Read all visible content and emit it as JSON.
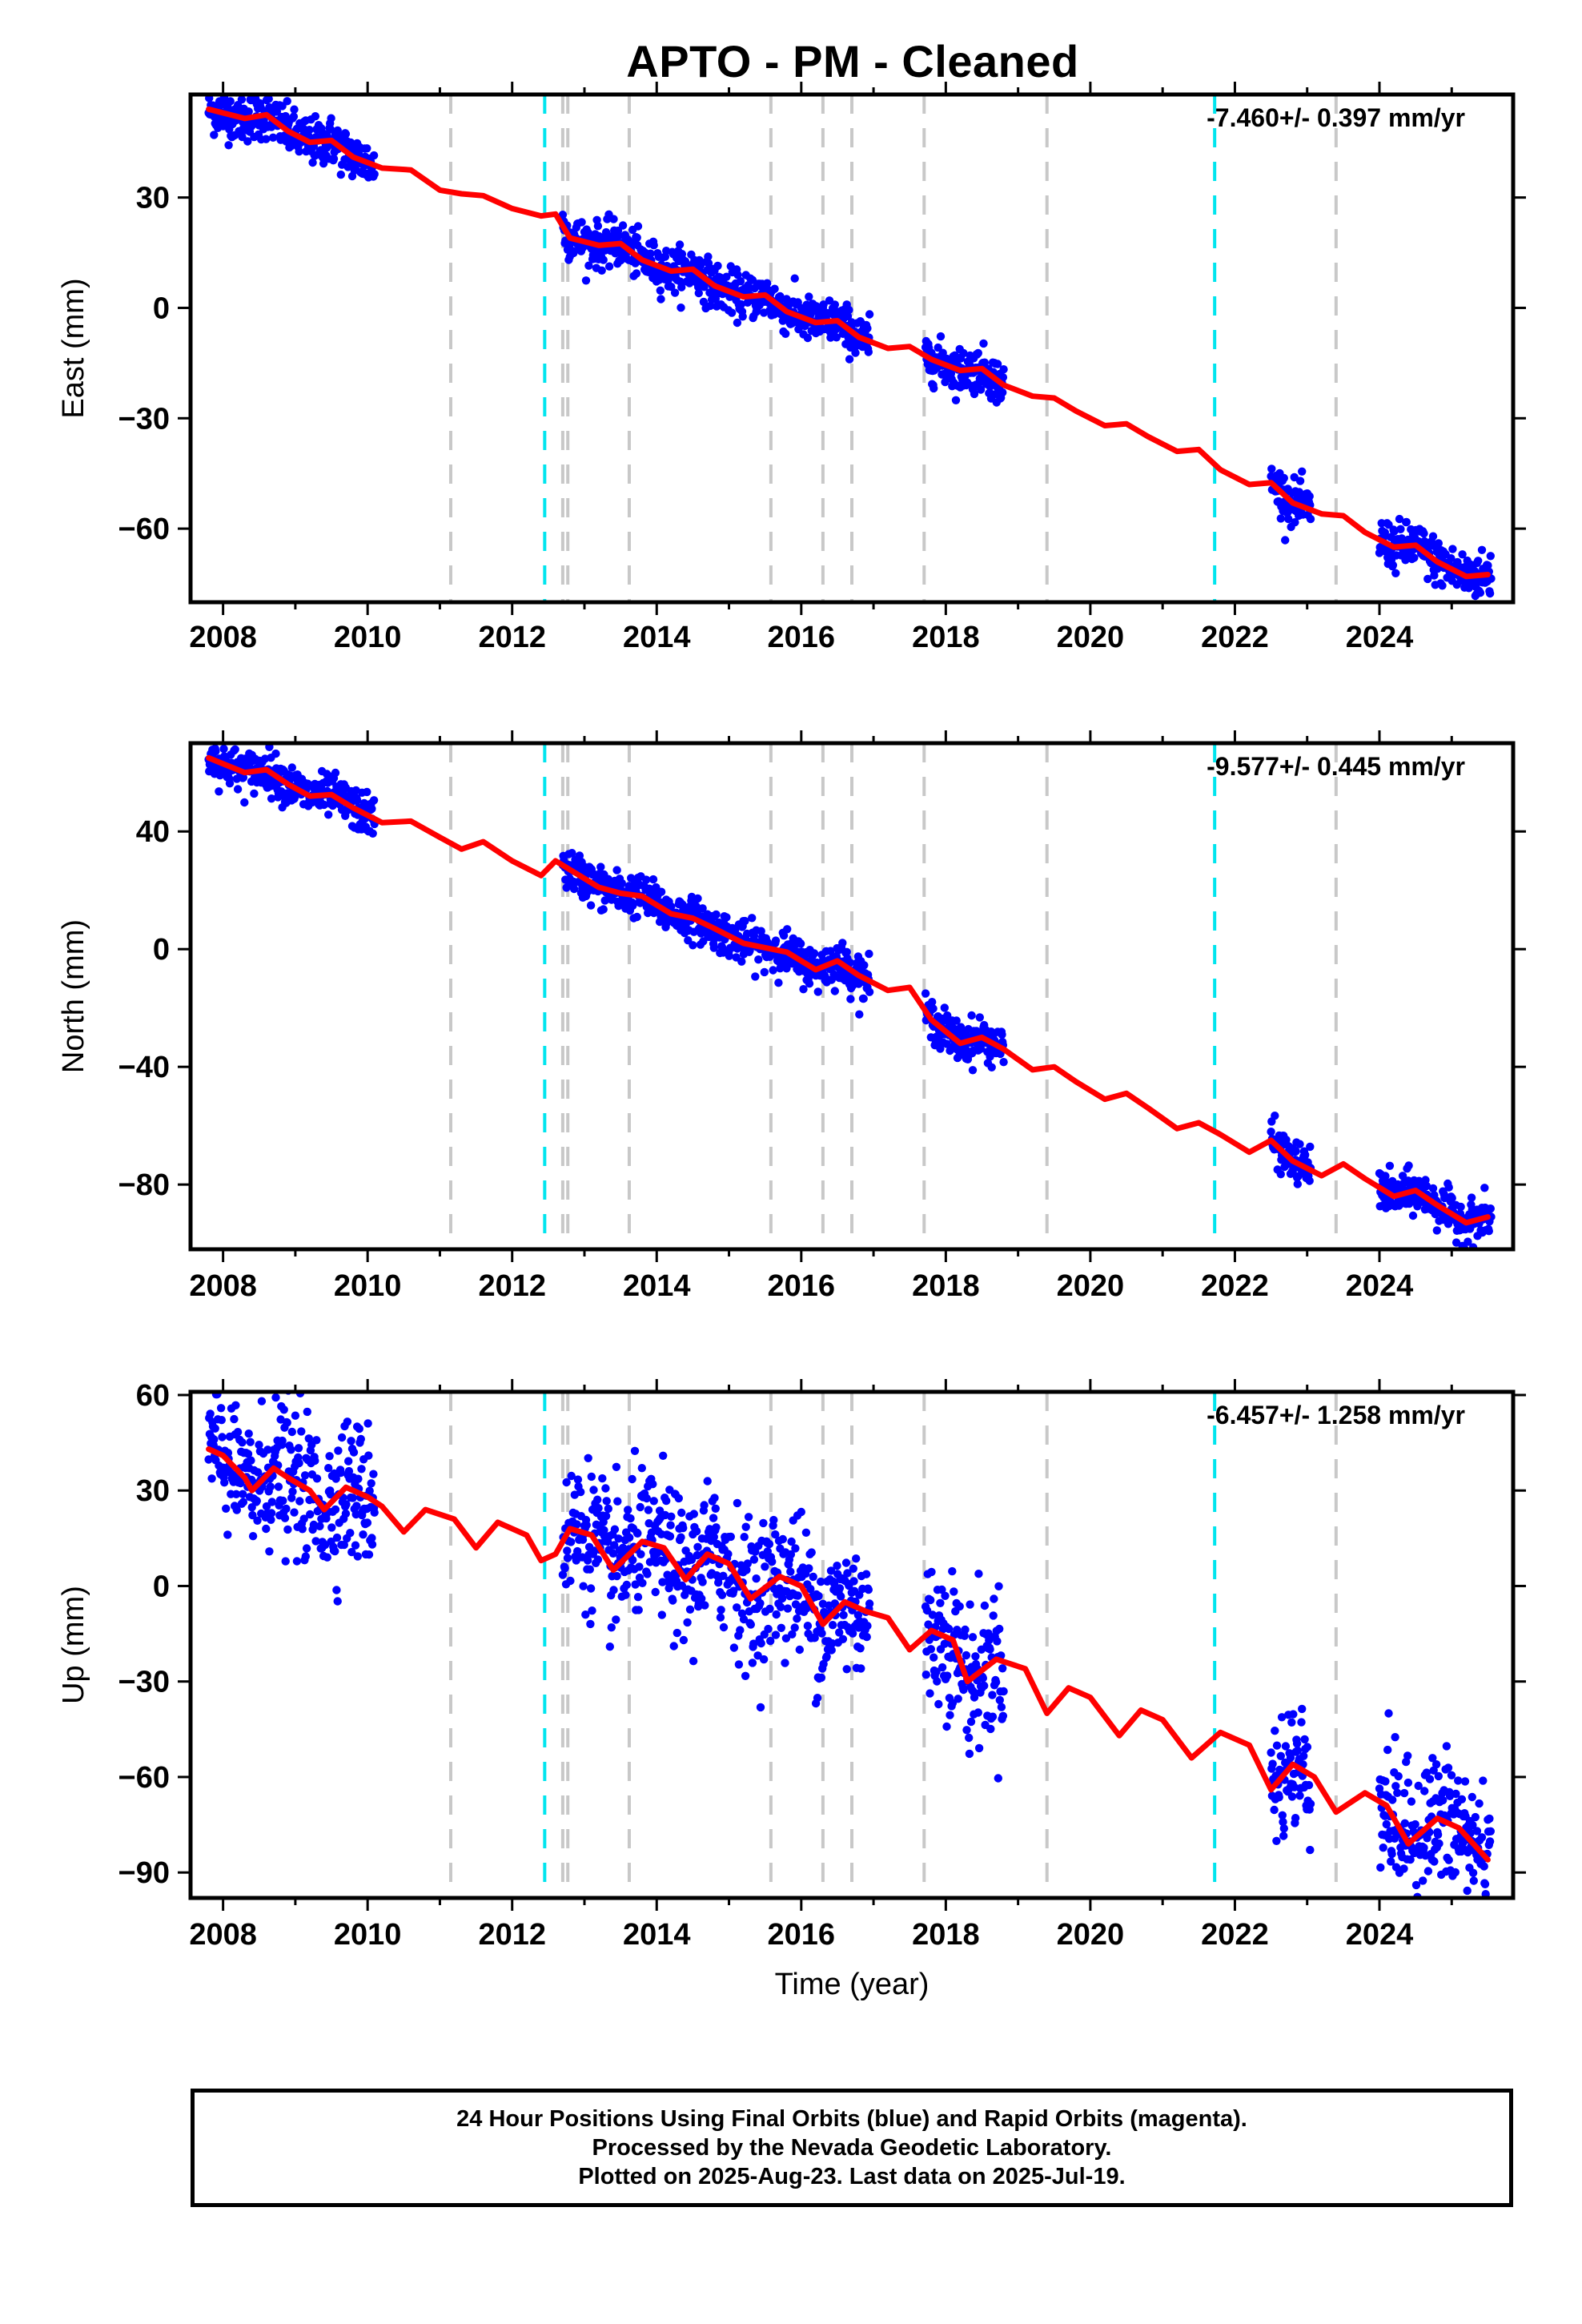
{
  "title": "APTO  - PM - Cleaned",
  "xlabel": "Time (year)",
  "colors": {
    "data": "#0000ff",
    "model": "#ff0000",
    "cyan_event": "#00e5ee",
    "gray_event": "#c8c8c8"
  },
  "footer": {
    "line1": "24 Hour Positions Using Final Orbits (blue) and Rapid Orbits (magenta).",
    "line2": "Processed by the Nevada Geodetic Laboratory.",
    "line3": "Plotted on 2025-Aug-23. Last data on 2025-Jul-19."
  },
  "chart_data": [
    {
      "type": "scatter",
      "id": "east",
      "ylabel": "East (mm)",
      "rate": "-7.460+/- 0.397 mm/yr",
      "xlim": [
        2007.55,
        2025.85
      ],
      "ylim": [
        -80,
        58
      ],
      "xticks": [
        2008,
        2010,
        2012,
        2014,
        2016,
        2018,
        2020,
        2022,
        2024
      ],
      "yticks": [
        30,
        0,
        -30,
        -60
      ],
      "ytick_labels": [
        "30",
        "0",
        "−30",
        "−60"
      ],
      "x_tick_labels": [
        "2008",
        "2010",
        "2012",
        "2014",
        "2016",
        "2018",
        "2020",
        "2022",
        "2024"
      ],
      "events_gray": [
        2011.15,
        2012.7,
        2012.77,
        2013.62,
        2015.58,
        2016.3,
        2016.7,
        2017.7,
        2019.4,
        2023.4
      ],
      "events_cyan": [
        2012.45,
        2021.72
      ],
      "model": [
        [
          2007.8,
          54
        ],
        [
          2008.0,
          53
        ],
        [
          2008.3,
          51.5
        ],
        [
          2008.6,
          52.5
        ],
        [
          2008.9,
          48
        ],
        [
          2009.2,
          45
        ],
        [
          2009.5,
          45.5
        ],
        [
          2009.8,
          41
        ],
        [
          2010.2,
          38
        ],
        [
          2010.6,
          37.5
        ],
        [
          2011.0,
          32
        ],
        [
          2011.3,
          31
        ],
        [
          2011.6,
          30.5
        ],
        [
          2012.0,
          27
        ],
        [
          2012.4,
          25
        ],
        [
          2012.6,
          25.5
        ],
        [
          2012.8,
          19
        ],
        [
          2013.2,
          17
        ],
        [
          2013.5,
          17.5
        ],
        [
          2013.8,
          13
        ],
        [
          2014.2,
          10
        ],
        [
          2014.5,
          10.5
        ],
        [
          2014.8,
          6
        ],
        [
          2015.2,
          3
        ],
        [
          2015.5,
          3.5
        ],
        [
          2015.8,
          -1
        ],
        [
          2016.2,
          -4
        ],
        [
          2016.5,
          -3.5
        ],
        [
          2016.8,
          -8
        ],
        [
          2017.2,
          -11
        ],
        [
          2017.5,
          -10.5
        ],
        [
          2017.8,
          -14
        ],
        [
          2018.2,
          -17
        ],
        [
          2018.5,
          -16.5
        ],
        [
          2018.8,
          -21
        ],
        [
          2019.2,
          -24
        ],
        [
          2019.5,
          -24.5
        ],
        [
          2019.8,
          -28
        ],
        [
          2020.2,
          -32
        ],
        [
          2020.5,
          -31.5
        ],
        [
          2020.8,
          -35
        ],
        [
          2021.2,
          -39
        ],
        [
          2021.5,
          -38.5
        ],
        [
          2021.8,
          -44
        ],
        [
          2022.2,
          -48
        ],
        [
          2022.5,
          -47.5
        ],
        [
          2022.8,
          -53
        ],
        [
          2023.2,
          -56
        ],
        [
          2023.5,
          -56.5
        ],
        [
          2023.8,
          -61
        ],
        [
          2024.2,
          -65
        ],
        [
          2024.5,
          -64.5
        ],
        [
          2024.8,
          -69
        ],
        [
          2025.2,
          -73
        ],
        [
          2025.5,
          -72.5
        ]
      ],
      "data_segments": [
        [
          2007.8,
          2010.1,
          3.2
        ],
        [
          2012.7,
          2016.95,
          3.0
        ],
        [
          2017.72,
          2018.8,
          3.0
        ],
        [
          2022.5,
          2023.05,
          3.0
        ],
        [
          2024.0,
          2025.55,
          3.2
        ]
      ]
    },
    {
      "type": "scatter",
      "id": "north",
      "ylabel": "North (mm)",
      "rate": "-9.577+/- 0.445 mm/yr",
      "xlim": [
        2007.55,
        2025.85
      ],
      "ylim": [
        -102,
        70
      ],
      "xticks": [
        2008,
        2010,
        2012,
        2014,
        2016,
        2018,
        2020,
        2022,
        2024
      ],
      "yticks": [
        40,
        0,
        -40,
        -80
      ],
      "ytick_labels": [
        "40",
        "0",
        "−40",
        "−80"
      ],
      "x_tick_labels": [
        "2008",
        "2010",
        "2012",
        "2014",
        "2016",
        "2018",
        "2020",
        "2022",
        "2024"
      ],
      "events_gray": [
        2011.15,
        2012.7,
        2012.77,
        2013.62,
        2015.58,
        2016.3,
        2016.7,
        2017.7,
        2019.4,
        2023.4
      ],
      "events_cyan": [
        2012.45,
        2021.72
      ],
      "model": [
        [
          2007.8,
          65
        ],
        [
          2008.0,
          63
        ],
        [
          2008.3,
          60
        ],
        [
          2008.6,
          61
        ],
        [
          2008.9,
          56
        ],
        [
          2009.2,
          52
        ],
        [
          2009.5,
          52.5
        ],
        [
          2009.8,
          48
        ],
        [
          2010.2,
          43
        ],
        [
          2010.6,
          43.5
        ],
        [
          2011.0,
          38
        ],
        [
          2011.3,
          34
        ],
        [
          2011.6,
          36.5
        ],
        [
          2012.0,
          30
        ],
        [
          2012.4,
          25
        ],
        [
          2012.6,
          30
        ],
        [
          2012.8,
          27
        ],
        [
          2013.2,
          21
        ],
        [
          2013.5,
          19
        ],
        [
          2013.8,
          18
        ],
        [
          2014.2,
          12
        ],
        [
          2014.5,
          10.5
        ],
        [
          2014.8,
          7
        ],
        [
          2015.2,
          2
        ],
        [
          2015.5,
          0.5
        ],
        [
          2015.8,
          -1
        ],
        [
          2016.2,
          -7
        ],
        [
          2016.5,
          -4
        ],
        [
          2016.8,
          -9
        ],
        [
          2017.2,
          -14
        ],
        [
          2017.5,
          -13
        ],
        [
          2017.8,
          -24
        ],
        [
          2018.2,
          -32
        ],
        [
          2018.5,
          -30
        ],
        [
          2018.8,
          -34
        ],
        [
          2019.2,
          -41
        ],
        [
          2019.5,
          -40
        ],
        [
          2019.8,
          -45
        ],
        [
          2020.2,
          -51
        ],
        [
          2020.5,
          -49
        ],
        [
          2020.8,
          -54
        ],
        [
          2021.2,
          -61
        ],
        [
          2021.5,
          -59
        ],
        [
          2021.8,
          -63
        ],
        [
          2022.2,
          -69
        ],
        [
          2022.5,
          -65
        ],
        [
          2022.8,
          -72
        ],
        [
          2023.2,
          -77
        ],
        [
          2023.5,
          -73
        ],
        [
          2023.8,
          -78
        ],
        [
          2024.2,
          -84
        ],
        [
          2024.5,
          -82
        ],
        [
          2024.8,
          -87
        ],
        [
          2025.2,
          -93
        ],
        [
          2025.5,
          -91
        ]
      ],
      "data_segments": [
        [
          2007.8,
          2010.1,
          3.5
        ],
        [
          2012.7,
          2016.95,
          3.5
        ],
        [
          2017.72,
          2018.8,
          3.5
        ],
        [
          2022.5,
          2023.05,
          3.5
        ],
        [
          2024.0,
          2025.55,
          3.5
        ]
      ]
    },
    {
      "type": "scatter",
      "id": "up",
      "ylabel": "Up (mm)",
      "rate": "-6.457+/- 1.258 mm/yr",
      "xlim": [
        2007.55,
        2025.85
      ],
      "ylim": [
        -98,
        61
      ],
      "xticks": [
        2008,
        2010,
        2012,
        2014,
        2016,
        2018,
        2020,
        2022,
        2024
      ],
      "yticks": [
        60,
        30,
        0,
        -30,
        -60,
        -90
      ],
      "ytick_labels": [
        "60",
        "30",
        "0",
        "−30",
        "−60",
        "−90"
      ],
      "x_tick_labels": [
        "2008",
        "2010",
        "2012",
        "2014",
        "2016",
        "2018",
        "2020",
        "2022",
        "2024"
      ],
      "events_gray": [
        2011.15,
        2012.7,
        2012.77,
        2013.62,
        2015.58,
        2016.3,
        2016.7,
        2017.7,
        2019.4,
        2023.4
      ],
      "events_cyan": [
        2012.45,
        2021.72
      ],
      "model": [
        [
          2007.8,
          43
        ],
        [
          2008.0,
          41
        ],
        [
          2008.3,
          34
        ],
        [
          2008.4,
          30
        ],
        [
          2008.7,
          37
        ],
        [
          2008.9,
          34
        ],
        [
          2009.2,
          30
        ],
        [
          2009.4,
          24
        ],
        [
          2009.7,
          31
        ],
        [
          2010.0,
          28
        ],
        [
          2010.2,
          25
        ],
        [
          2010.5,
          17
        ],
        [
          2010.8,
          24
        ],
        [
          2011.2,
          21
        ],
        [
          2011.5,
          12
        ],
        [
          2011.8,
          20
        ],
        [
          2012.2,
          16
        ],
        [
          2012.4,
          8
        ],
        [
          2012.6,
          10
        ],
        [
          2012.8,
          18
        ],
        [
          2013.1,
          16
        ],
        [
          2013.4,
          5
        ],
        [
          2013.8,
          14
        ],
        [
          2014.1,
          12
        ],
        [
          2014.4,
          2
        ],
        [
          2014.7,
          10
        ],
        [
          2015.0,
          7
        ],
        [
          2015.3,
          -4
        ],
        [
          2015.7,
          3
        ],
        [
          2016.0,
          0
        ],
        [
          2016.3,
          -12
        ],
        [
          2016.6,
          -5
        ],
        [
          2016.9,
          -8
        ],
        [
          2017.2,
          -10
        ],
        [
          2017.5,
          -20
        ],
        [
          2017.8,
          -14
        ],
        [
          2018.1,
          -17
        ],
        [
          2018.3,
          -30
        ],
        [
          2018.7,
          -23
        ],
        [
          2019.1,
          -26
        ],
        [
          2019.4,
          -40
        ],
        [
          2019.7,
          -32
        ],
        [
          2020.0,
          -35
        ],
        [
          2020.4,
          -47
        ],
        [
          2020.7,
          -39
        ],
        [
          2021.0,
          -42
        ],
        [
          2021.4,
          -54
        ],
        [
          2021.8,
          -46
        ],
        [
          2022.2,
          -50
        ],
        [
          2022.5,
          -64
        ],
        [
          2022.8,
          -56
        ],
        [
          2023.1,
          -60
        ],
        [
          2023.4,
          -71
        ],
        [
          2023.8,
          -65
        ],
        [
          2024.1,
          -69
        ],
        [
          2024.4,
          -81
        ],
        [
          2024.8,
          -73
        ],
        [
          2025.1,
          -76
        ],
        [
          2025.5,
          -86
        ]
      ],
      "data_segments": [
        [
          2007.8,
          2010.1,
          11
        ],
        [
          2012.7,
          2016.95,
          11
        ],
        [
          2017.72,
          2018.8,
          11
        ],
        [
          2022.5,
          2023.05,
          11
        ],
        [
          2024.0,
          2025.55,
          11
        ]
      ]
    }
  ]
}
